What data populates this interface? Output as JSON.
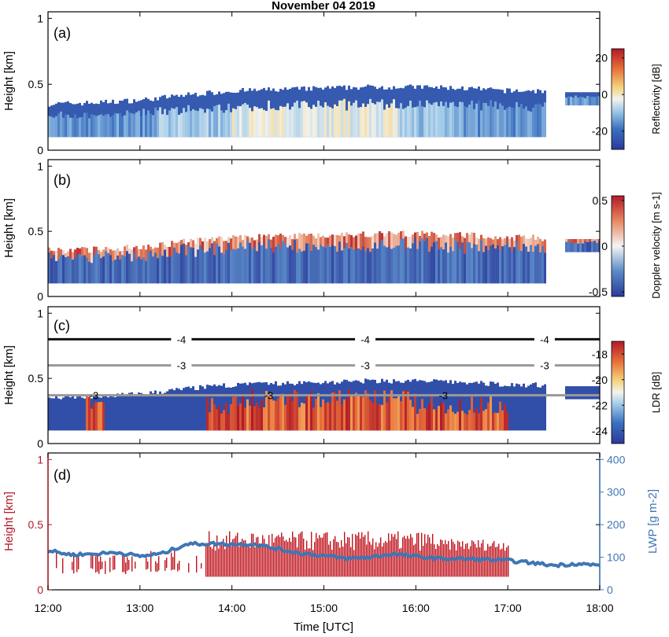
{
  "figure": {
    "title": "November 04 2019",
    "x_label": "Time [UTC]",
    "x_ticks": [
      "12:00",
      "13:00",
      "14:00",
      "15:00",
      "16:00",
      "17:00",
      "18:00"
    ]
  },
  "chart_data": [
    {
      "panel": "(a)",
      "type": "heatmap",
      "ylabel": "Height [km]",
      "xlim": [
        12.0,
        18.0
      ],
      "ylim": [
        0,
        1.05
      ],
      "yticks": [
        0,
        0.5,
        1
      ],
      "colorbar": {
        "label": "Reflectivity [dB]",
        "ticks": [
          20,
          0,
          -20
        ],
        "range": [
          -30,
          25
        ],
        "colormap": "blue-white-yellow-red"
      },
      "echo_top_km": [
        [
          12.0,
          0.35
        ],
        [
          12.5,
          0.36
        ],
        [
          13.0,
          0.38
        ],
        [
          13.5,
          0.42
        ],
        [
          14.0,
          0.45
        ],
        [
          14.5,
          0.46
        ],
        [
          15.0,
          0.47
        ],
        [
          15.5,
          0.48
        ],
        [
          16.0,
          0.48
        ],
        [
          16.5,
          0.47
        ],
        [
          17.0,
          0.45
        ],
        [
          17.3,
          0.45
        ],
        [
          17.7,
          0.44
        ],
        [
          18.0,
          0.44
        ]
      ],
      "echo_base_km": 0.1,
      "signal_end_hour": 17.4
    },
    {
      "panel": "(b)",
      "type": "heatmap",
      "ylabel": "Height [km]",
      "xlim": [
        12.0,
        18.0
      ],
      "ylim": [
        0,
        1.05
      ],
      "yticks": [
        0,
        0.5,
        1
      ],
      "colorbar": {
        "label": "Doppler velocity [m s-1]",
        "ticks": [
          0.5,
          0,
          -0.5
        ],
        "range": [
          -0.55,
          0.55
        ],
        "colormap": "blue-white-red"
      }
    },
    {
      "panel": "(c)",
      "type": "heatmap",
      "ylabel": "Height [km]",
      "xlim": [
        12.0,
        18.0
      ],
      "ylim": [
        0,
        1.05
      ],
      "yticks": [
        0,
        0.5,
        1
      ],
      "colorbar": {
        "label": "LDR [dB]",
        "ticks": [
          -18,
          -20,
          -22,
          -24
        ],
        "range": [
          -25,
          -17
        ],
        "colormap": "blue-white-yellow-red"
      },
      "contours": [
        {
          "label": "-4",
          "height_km": 0.8,
          "color": "#111111"
        },
        {
          "label": "-3",
          "height_km": 0.6,
          "color": "#999999"
        },
        {
          "label": "-3",
          "height_km": 0.37,
          "color": "#999999"
        }
      ]
    },
    {
      "panel": "(d)",
      "type": "bar",
      "ylabel_left": "Height [km]",
      "ylabel_right": "LWP [g m-2]",
      "xlim": [
        12.0,
        18.0
      ],
      "ylim_left": [
        0,
        1.05
      ],
      "yticks_left": [
        0,
        0.5,
        1
      ],
      "ylim_right": [
        0,
        420
      ],
      "yticks_right": [
        0,
        100,
        200,
        300,
        400
      ],
      "series": [
        {
          "name": "LWP",
          "x": [
            12.0,
            12.25,
            12.5,
            12.75,
            13.0,
            13.25,
            13.5,
            13.75,
            14.0,
            14.25,
            14.5,
            14.75,
            15.0,
            15.25,
            15.5,
            15.75,
            16.0,
            16.25,
            16.5,
            16.75,
            17.0,
            17.25,
            17.5,
            17.75,
            18.0
          ],
          "y": [
            120,
            108,
            110,
            115,
            103,
            112,
            140,
            142,
            140,
            140,
            125,
            112,
            105,
            96,
            100,
            110,
            102,
            96,
            95,
            93,
            90,
            83,
            75,
            80,
            75
          ]
        }
      ]
    }
  ]
}
